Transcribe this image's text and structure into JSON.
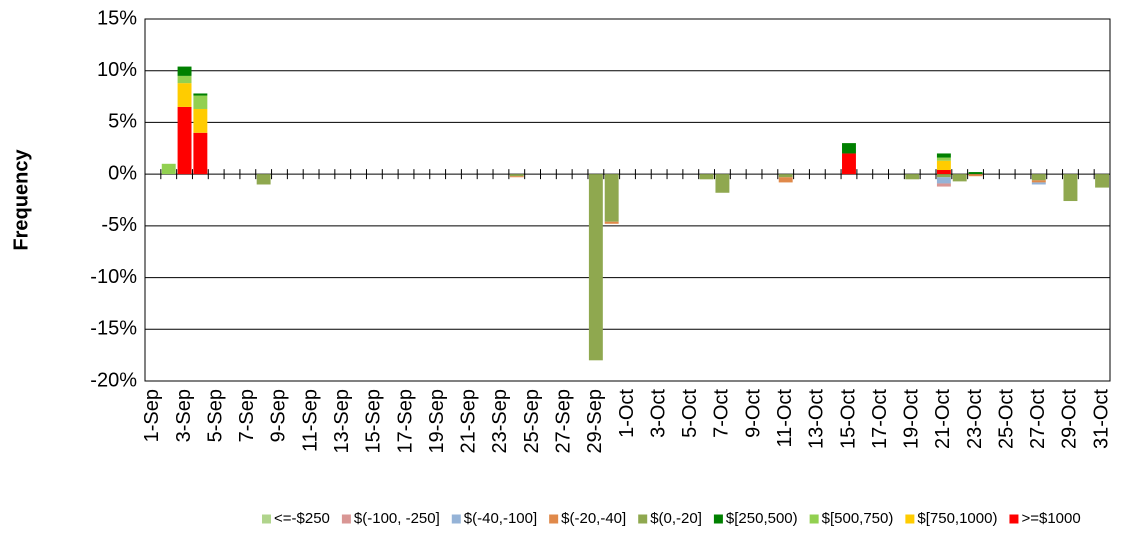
{
  "chart_data": {
    "type": "bar",
    "stacked": true,
    "y_label": "Frequency",
    "categories": [
      "1-Sep",
      null,
      "3-Sep",
      null,
      "5-Sep",
      null,
      "7-Sep",
      null,
      "9-Sep",
      null,
      "11-Sep",
      null,
      "13-Sep",
      null,
      "15-Sep",
      null,
      "17-Sep",
      null,
      "19-Sep",
      null,
      "21-Sep",
      null,
      "23-Sep",
      null,
      "25-Sep",
      null,
      "27-Sep",
      null,
      "29-Sep",
      null,
      "1-Oct",
      null,
      "3-Oct",
      null,
      "5-Oct",
      null,
      "7-Oct",
      null,
      "9-Oct",
      null,
      "11-Oct",
      null,
      "13-Oct",
      null,
      "15-Oct",
      null,
      "17-Oct",
      null,
      "19-Oct",
      null,
      "21-Oct",
      null,
      "23-Oct",
      null,
      "25-Oct",
      null,
      "27-Oct",
      null,
      "29-Oct",
      null,
      "31-Oct"
    ],
    "ylim": [
      -20,
      15
    ],
    "yticks": [
      {
        "value": -20,
        "label": "-20%"
      },
      {
        "value": -15,
        "label": "-15%"
      },
      {
        "value": -10,
        "label": "-10%"
      },
      {
        "value": -5,
        "label": "-5%"
      },
      {
        "value": 0,
        "label": "0%"
      },
      {
        "value": 5,
        "label": "5%"
      },
      {
        "value": 10,
        "label": "10%"
      },
      {
        "value": 15,
        "label": "15%"
      }
    ],
    "grid": true,
    "legend": "bottom",
    "series": [
      {
        "name": "<=-$250",
        "color": "#b0d48c",
        "values": [
          0,
          0,
          0,
          0,
          0,
          0,
          0,
          0,
          0,
          0,
          0,
          0,
          0,
          0,
          0,
          0,
          0,
          0,
          0,
          0,
          0,
          0,
          0,
          0,
          0,
          0,
          0,
          0,
          0,
          0,
          0,
          0,
          0,
          0,
          0,
          0,
          0,
          0,
          0,
          0,
          0,
          0,
          0,
          0,
          0,
          0,
          0,
          0,
          0,
          0,
          0,
          0,
          0,
          0,
          0,
          0,
          0,
          0,
          0,
          0,
          0
        ]
      },
      {
        "name": "$(-100, -250]",
        "color": "#d99694",
        "values": [
          0,
          0,
          0,
          0,
          0,
          0,
          0,
          0,
          0,
          0,
          0,
          0,
          0,
          0,
          0,
          0,
          0,
          0,
          0,
          0,
          0,
          0,
          0,
          0,
          0,
          0,
          0,
          0,
          0,
          0,
          0,
          0,
          0,
          0,
          0,
          0,
          0,
          0,
          0,
          0,
          0,
          0,
          0,
          0,
          0,
          0,
          0,
          0,
          0,
          0,
          -0.3,
          0,
          0,
          0,
          0,
          0,
          0,
          0,
          0,
          0,
          0
        ]
      },
      {
        "name": "$(-40,-100]",
        "color": "#95b3d7",
        "values": [
          0,
          0,
          0,
          0,
          0,
          0,
          0,
          0,
          0,
          0,
          0,
          0,
          0,
          0,
          0,
          0,
          0,
          0,
          0,
          0,
          0,
          0,
          0,
          0,
          0,
          0,
          0,
          0,
          0,
          0,
          0,
          0,
          0,
          0,
          0,
          0,
          0,
          0,
          0,
          0,
          0,
          0,
          0,
          0,
          0,
          0,
          0,
          0,
          0,
          0,
          -0.6,
          0,
          0,
          0,
          0,
          0,
          -0.2,
          0,
          0,
          0,
          0
        ]
      },
      {
        "name": "$(-20,-40]",
        "color": "#e0894a",
        "values": [
          0,
          0,
          0,
          0,
          0,
          0,
          0,
          0,
          0,
          0,
          0,
          0,
          0,
          0,
          0,
          0,
          0,
          0,
          0,
          0,
          0,
          0,
          0,
          -0.1,
          0,
          0,
          0,
          0,
          0,
          -0.2,
          0,
          0,
          0,
          0,
          0,
          0,
          0,
          0,
          0,
          0,
          -0.5,
          0,
          0,
          0,
          0,
          0,
          0,
          0,
          0,
          0,
          0,
          0,
          -0.2,
          0,
          0,
          0,
          -0.2,
          0,
          0,
          0,
          0
        ]
      },
      {
        "name": "$(0,-20]",
        "color": "#8fa84f",
        "values": [
          0,
          0,
          0,
          0,
          0,
          0,
          0,
          -1,
          0,
          0,
          0,
          0,
          0,
          0,
          0,
          0,
          0,
          0,
          0,
          0,
          0,
          0,
          0,
          -0.2,
          0,
          0,
          0,
          0,
          -18,
          -4.6,
          0,
          0,
          0,
          0,
          0,
          -0.5,
          -1.8,
          0,
          0,
          0,
          -0.3,
          0,
          0,
          0,
          0,
          0,
          0,
          0,
          -0.5,
          0,
          -0.3,
          -0.7,
          0,
          0,
          0,
          0,
          -0.6,
          0,
          -2.6,
          0,
          -1.3
        ]
      },
      {
        "name": "$[250,500)",
        "color": "#008000",
        "values": [
          0,
          0,
          0.9,
          0.2,
          0,
          0,
          0,
          0,
          0,
          0,
          0,
          0,
          0,
          0,
          0,
          0,
          0,
          0,
          0,
          0,
          0,
          0,
          0,
          0,
          0,
          0,
          0,
          0,
          0,
          0,
          0,
          0,
          0,
          0,
          0,
          0,
          0,
          0,
          0,
          0,
          0,
          0,
          0,
          0,
          1,
          0,
          0,
          0,
          0,
          0,
          0.4,
          0,
          0.2,
          0,
          0,
          0,
          0,
          0,
          0,
          0,
          0
        ]
      },
      {
        "name": "$[500,750)",
        "color": "#92d050",
        "values": [
          0,
          1,
          0.7,
          1.3,
          0,
          0,
          0,
          0,
          0,
          0,
          0,
          0,
          0,
          0,
          0,
          0,
          0,
          0,
          0,
          0,
          0,
          0,
          0,
          0,
          0,
          0,
          0,
          0,
          0,
          0,
          0,
          0,
          0,
          0,
          0,
          0,
          0,
          0,
          0,
          0,
          0,
          0,
          0,
          0,
          0,
          0,
          0,
          0,
          0,
          0,
          0.3,
          0,
          0,
          0,
          0,
          0,
          0,
          0,
          0,
          0,
          0
        ]
      },
      {
        "name": "$[750,1000)",
        "color": "#ffcc00",
        "values": [
          0,
          0,
          2.3,
          2.3,
          0,
          0,
          0,
          0,
          0,
          0,
          0,
          0,
          0,
          0,
          0,
          0,
          0,
          0,
          0,
          0,
          0,
          0,
          0,
          0,
          0,
          0,
          0,
          0,
          0,
          0,
          0,
          0,
          0,
          0,
          0,
          0,
          0,
          0,
          0,
          0,
          0,
          0,
          0,
          0,
          0,
          0,
          0,
          0,
          0,
          0,
          0.9,
          0,
          0,
          0,
          0,
          0,
          0,
          0,
          0,
          0,
          0
        ]
      },
      {
        "name": ">=$1000",
        "color": "#ff0000",
        "values": [
          0,
          0,
          6.5,
          4,
          0,
          0,
          0,
          0,
          0,
          0,
          0,
          0,
          0,
          0,
          0,
          0,
          0,
          0,
          0,
          0,
          0,
          0,
          0,
          0,
          0,
          0,
          0,
          0,
          0,
          0,
          0,
          0,
          0,
          0,
          0,
          0,
          0,
          0,
          0,
          0,
          0,
          0,
          0,
          0,
          2,
          0,
          0,
          0,
          0,
          0,
          0.4,
          0,
          0,
          0,
          0,
          0,
          0,
          0,
          0,
          0,
          0
        ]
      }
    ]
  }
}
